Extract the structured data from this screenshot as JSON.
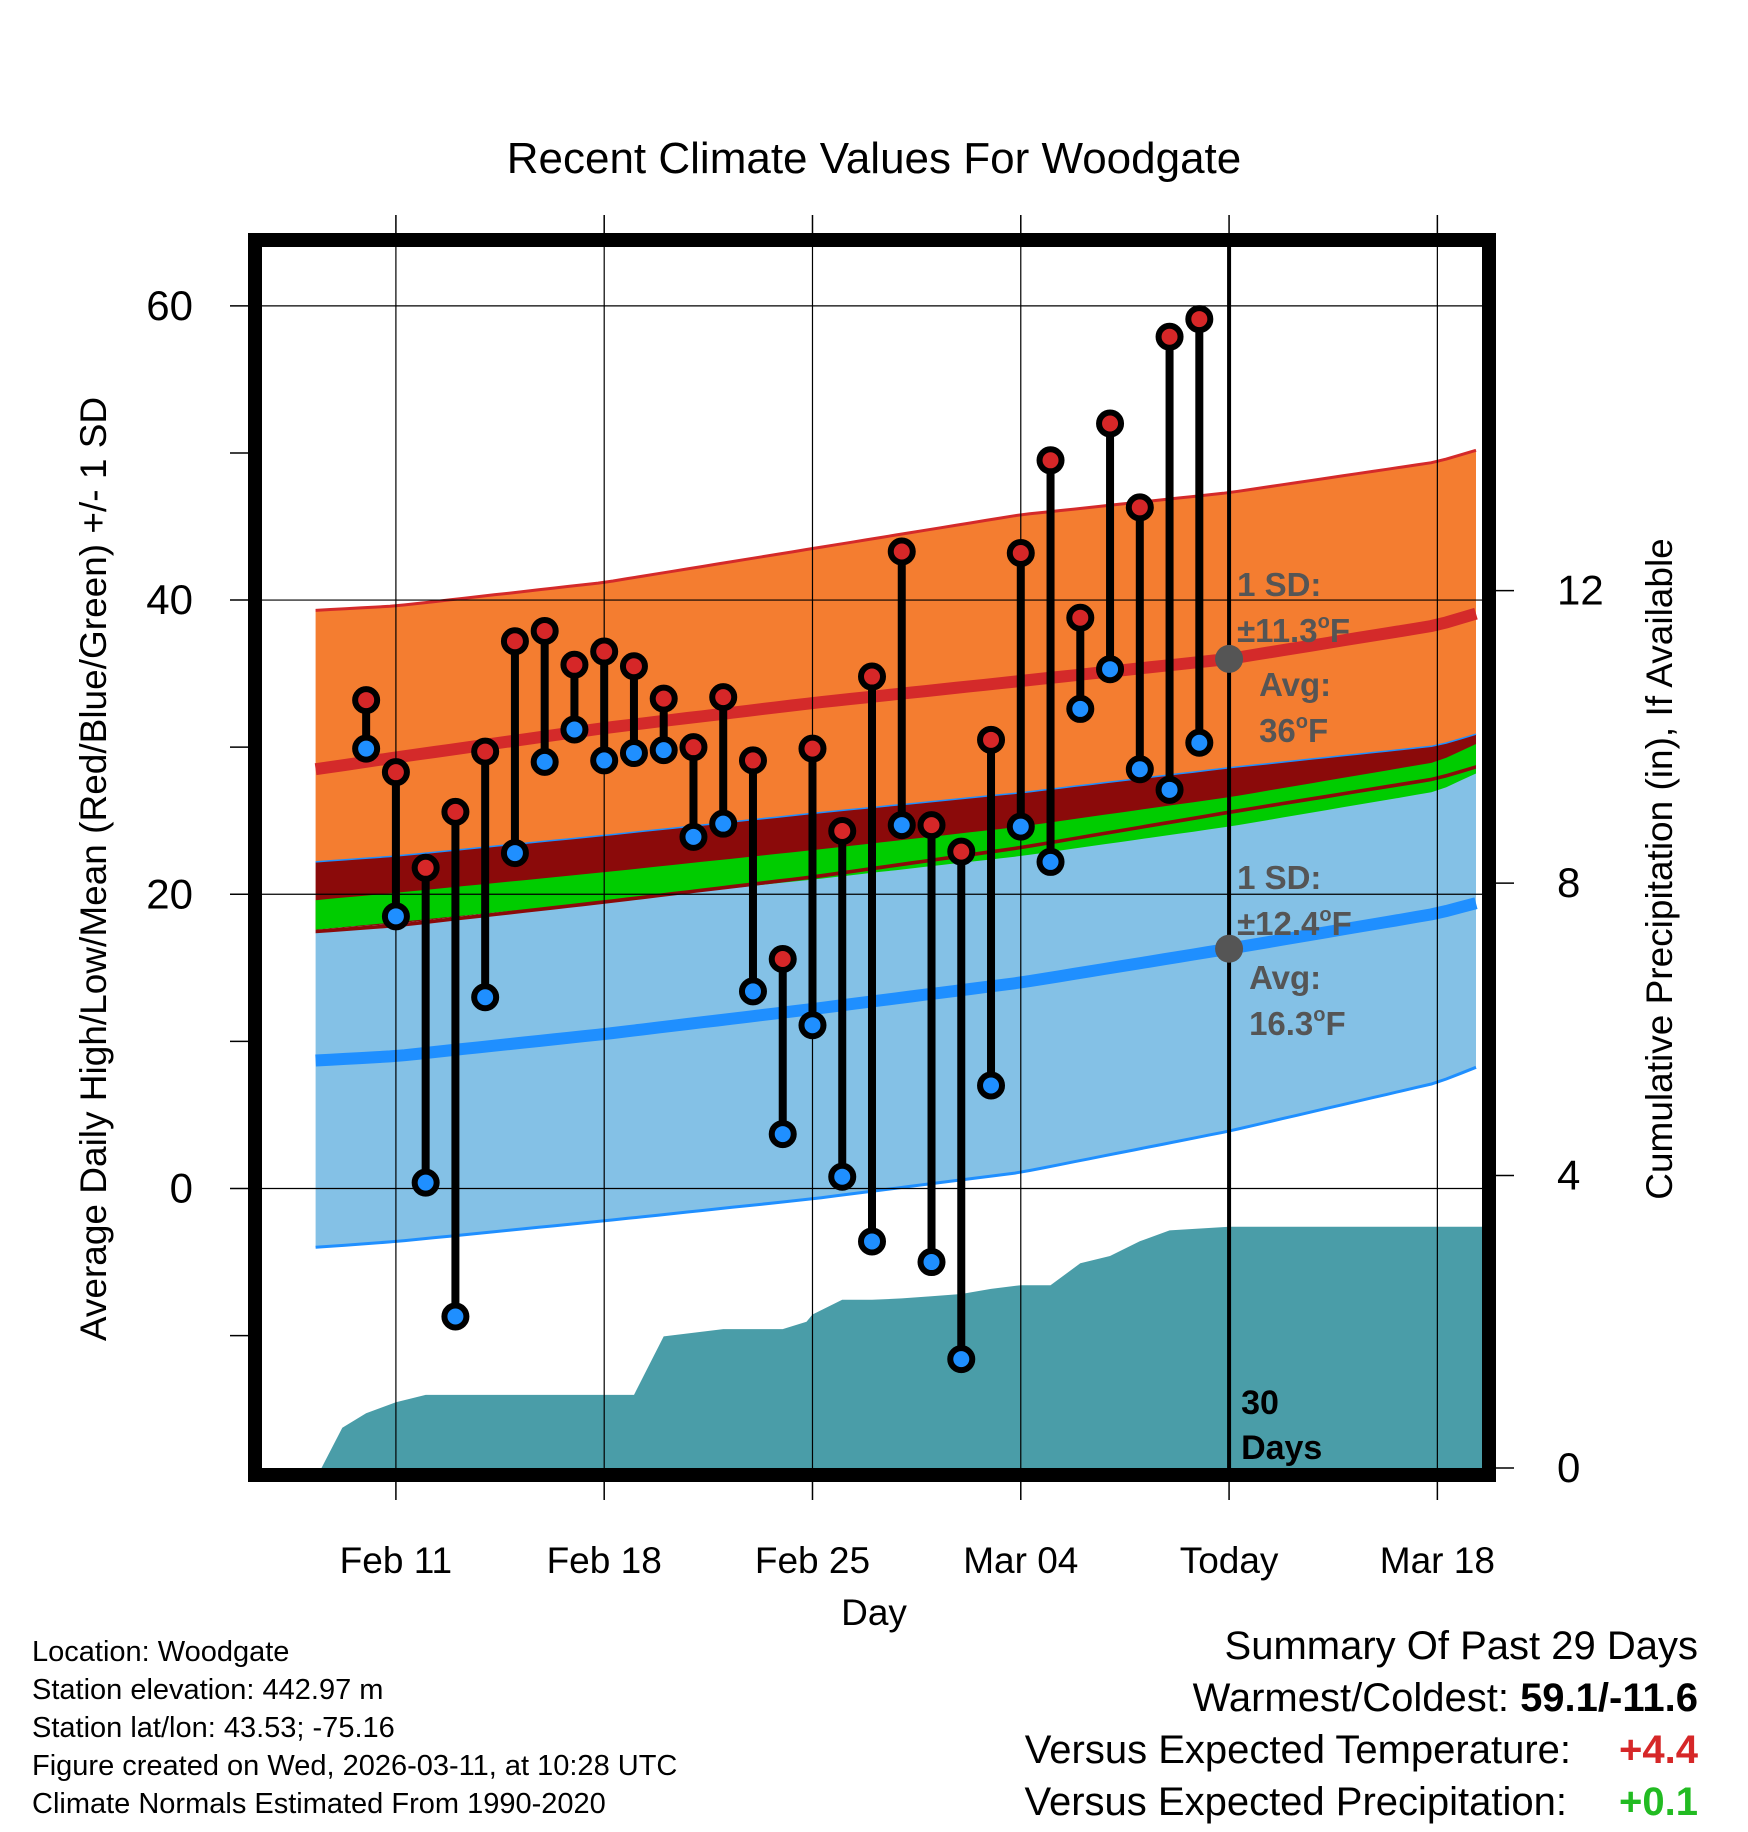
{
  "chart_data": {
    "type": "line",
    "title": "Recent Climate Values For Woodgate",
    "xlabel": "Day",
    "ylabel": "Average Daily High/Low/Mean (Red/Blue/Green) +/- 1 SD",
    "y2label": "Cumulative Precipitation (in), If Available",
    "xlim": [
      -4.5,
      36.5
    ],
    "ylim": [
      -19,
      64
    ],
    "y2lim": [
      0,
      16.7
    ],
    "x_ticks": [
      {
        "day": 0,
        "label": "Feb 11"
      },
      {
        "day": 7,
        "label": "Feb 18"
      },
      {
        "day": 14,
        "label": "Feb 25"
      },
      {
        "day": 21,
        "label": "Mar 04"
      },
      {
        "day": 28,
        "label": "Today"
      },
      {
        "day": 35,
        "label": "Mar 18"
      }
    ],
    "y_ticks": [
      0,
      20,
      40,
      60
    ],
    "y2_ticks": [
      0,
      4,
      8,
      12
    ],
    "today_day": 28,
    "today_label": [
      "30",
      "Days"
    ],
    "normals": {
      "days": [
        -2.7,
        0,
        7,
        14,
        21,
        28,
        35,
        36.5
      ],
      "high_mean": [
        28.5,
        29.3,
        31.3,
        33.0,
        34.5,
        36.0,
        38.3,
        39.2
      ],
      "high_upper": [
        39.3,
        39.6,
        41.2,
        43.5,
        45.8,
        47.3,
        49.4,
        50.3
      ],
      "high_lower": [
        22.2,
        22.6,
        24.0,
        25.5,
        26.9,
        28.6,
        30.1,
        31.0
      ],
      "mean_mean": [
        18.6,
        19.1,
        20.5,
        22.0,
        23.6,
        25.6,
        28.0,
        29.4
      ],
      "low_mean": [
        8.7,
        9.0,
        10.5,
        12.2,
        14.0,
        16.3,
        18.7,
        19.5
      ],
      "low_upper": [
        17.6,
        18.0,
        19.6,
        21.3,
        23.3,
        25.7,
        28.0,
        28.9
      ],
      "low_lower": [
        -4.0,
        -3.6,
        -2.2,
        -0.7,
        1.1,
        3.9,
        7.2,
        8.4
      ]
    },
    "series": [
      {
        "name": "Daily High",
        "color": "#d62728",
        "values": [
          33.2,
          28.3,
          21.8,
          25.6,
          29.7,
          37.2,
          37.9,
          35.6,
          36.5,
          35.5,
          33.3,
          30.0,
          33.4,
          29.1,
          15.6,
          29.9,
          24.3,
          34.8,
          43.3,
          24.7,
          22.9,
          30.5,
          43.2,
          49.5,
          38.8,
          52.0,
          46.3,
          57.9,
          59.1
        ]
      },
      {
        "name": "Daily Low",
        "color": "#1f8fff",
        "values": [
          29.9,
          18.5,
          0.4,
          -8.7,
          13.0,
          22.8,
          29.0,
          31.2,
          29.1,
          29.6,
          29.8,
          23.9,
          24.8,
          13.4,
          3.7,
          11.1,
          0.8,
          -3.6,
          24.7,
          -5.0,
          -11.6,
          7.0,
          24.6,
          22.2,
          32.6,
          35.3,
          28.5,
          27.1,
          30.3
        ]
      }
    ],
    "days_observed": [
      0,
      1,
      2,
      3,
      4,
      5,
      6,
      7,
      8,
      9,
      10,
      11,
      12,
      13,
      14,
      15,
      16,
      17,
      18,
      19,
      20,
      21,
      22,
      23,
      24,
      25,
      26,
      27,
      28
    ],
    "x_offset_first": -1.0,
    "precip": {
      "days": [
        -2.5,
        -1.8,
        -1.0,
        0,
        1.0,
        8.0,
        9.0,
        10.0,
        11.0,
        12.0,
        13.0,
        13.8,
        14.0,
        15.0,
        16.0,
        17.0,
        18.0,
        19.0,
        20.0,
        21.0,
        22.0,
        23.0,
        24.0,
        25.0,
        26.0,
        28.0,
        36.5
      ],
      "values": [
        0.0,
        0.55,
        0.75,
        0.9,
        1.0,
        1.0,
        1.8,
        1.85,
        1.9,
        1.9,
        1.9,
        2.0,
        2.1,
        2.3,
        2.3,
        2.32,
        2.35,
        2.38,
        2.45,
        2.5,
        2.5,
        2.8,
        2.9,
        3.1,
        3.25,
        3.3,
        3.3
      ]
    },
    "annotations": {
      "high_sd": {
        "line1": "1 SD:",
        "line2": "±11.3",
        "unit": "F",
        "avg_label": "Avg:",
        "avg_value": "36",
        "avg_num": 36
      },
      "low_sd": {
        "line1": "1 SD:",
        "line2": "±12.4",
        "unit": "F",
        "avg_label": "Avg:",
        "avg_value": "16.3",
        "avg_num": 16.3
      }
    },
    "colors": {
      "high_band": "#f47d30",
      "high_line": "#d42a2a",
      "overlap_band": "#8b0a0a",
      "mean_band": "#00cc00",
      "low_band": "#84c1e6",
      "low_line": "#1f8fff",
      "precip": "#4a9da8",
      "annot": "#555555",
      "grid": "#000000"
    }
  },
  "info": {
    "location": "Location: Woodgate",
    "elevation": "Station elevation: 442.97 m",
    "latlon": "Station lat/lon: 43.53; -75.16",
    "created": "Figure created on Wed, 2026-03-11, at 10:28 UTC",
    "normals": "Climate Normals Estimated From 1990-2020"
  },
  "summary": {
    "title": "Summary Of Past 29 Days",
    "warm_cold_label": "Warmest/Coldest:",
    "warm_cold_value": "59.1/-11.6",
    "temp_label": "Versus Expected Temperature:",
    "temp_value": "+4.4",
    "temp_color": "#d62728",
    "precip_label": "Versus Expected Precipitation:",
    "precip_value": "+0.1",
    "precip_color": "#22bb22"
  }
}
